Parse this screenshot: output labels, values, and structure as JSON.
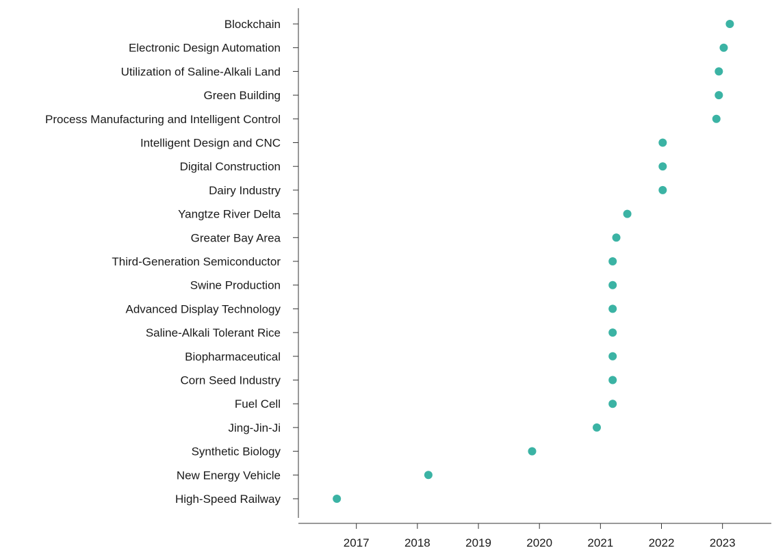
{
  "chart_data": {
    "type": "scatter",
    "title": "",
    "xlabel": "",
    "ylabel": "",
    "xlim": [
      2016.05,
      2023.8
    ],
    "x_ticks": [
      "2017",
      "2018",
      "2019",
      "2020",
      "2021",
      "2022",
      "2023"
    ],
    "grid": false,
    "legend": "none",
    "point_color": "#3bb3a4",
    "categories": [
      "Blockchain",
      "Electronic Design Automation",
      "Utilization of Saline-Alkali Land",
      "Green Building",
      "Process Manufacturing and Intelligent Control",
      "Intelligent Design and CNC",
      "Digital Construction",
      "Dairy Industry",
      "Yangtze River Delta",
      "Greater Bay Area",
      "Third-Generation Semiconductor",
      "Swine Production",
      "Advanced Display Technology",
      "Saline-Alkali Tolerant Rice",
      "Biopharmaceutical",
      "Corn Seed Industry",
      "Fuel Cell",
      "Jing-Jin-Ji",
      "Synthetic Biology",
      "New Energy Vehicle",
      "High-Speed Railway"
    ],
    "values": [
      2023.12,
      2023.02,
      2022.94,
      2022.94,
      2022.9,
      2022.02,
      2022.02,
      2022.02,
      2021.44,
      2021.26,
      2021.2,
      2021.2,
      2021.2,
      2021.2,
      2021.2,
      2021.2,
      2021.2,
      2020.94,
      2019.88,
      2018.18,
      2016.68
    ]
  }
}
